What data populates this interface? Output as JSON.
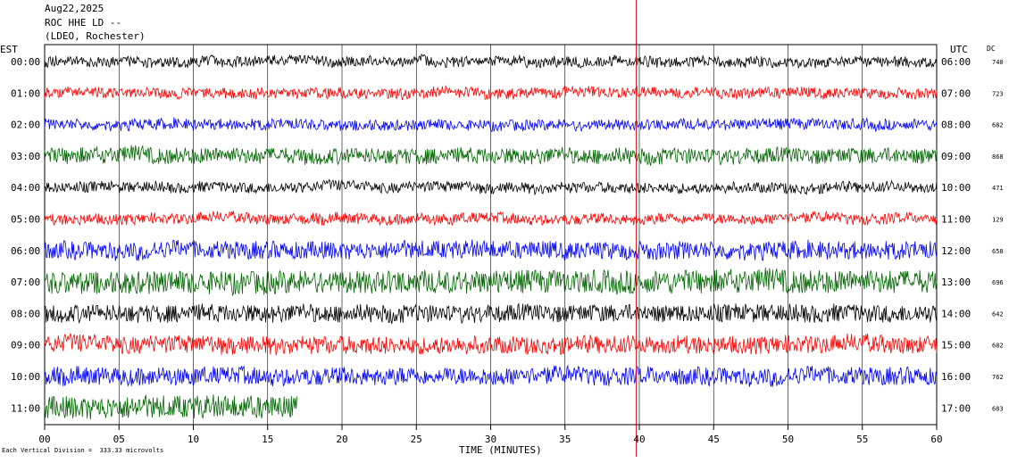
{
  "header": {
    "date": "Aug22,2025",
    "station_line": "ROC HHE LD --",
    "location_line": "(LDEO, Rochester)"
  },
  "axis_labels": {
    "left_timezone": "EST",
    "right_timezone": "UTC",
    "dc_label": "DC",
    "x_title": "TIME (MINUTES)"
  },
  "footer": {
    "note": "Each Vertical Division =  333.33 microvolts"
  },
  "chart_data": {
    "type": "line",
    "title": "",
    "xlabel": "TIME (MINUTES)",
    "x_ticks": [
      "00",
      "05",
      "10",
      "15",
      "20",
      "25",
      "30",
      "35",
      "40",
      "45",
      "50",
      "55",
      "60"
    ],
    "xlim": [
      0,
      60
    ],
    "vertical_division_microvolts": 333.33,
    "trace_colors": [
      "#000000",
      "#ff0000",
      "#0000ff",
      "#006600"
    ],
    "marker_line": {
      "minute": 39.8,
      "color": "#cc0000"
    },
    "rows": [
      {
        "est": "00:00",
        "utc": "06:00",
        "dc": "740",
        "color": "#000000",
        "end_minute": 60
      },
      {
        "est": "01:00",
        "utc": "07:00",
        "dc": "723",
        "color": "#ff0000",
        "end_minute": 60
      },
      {
        "est": "02:00",
        "utc": "08:00",
        "dc": "682",
        "color": "#0000ff",
        "end_minute": 60
      },
      {
        "est": "03:00",
        "utc": "09:00",
        "dc": "868",
        "color": "#006600",
        "end_minute": 60
      },
      {
        "est": "04:00",
        "utc": "10:00",
        "dc": "471",
        "color": "#000000",
        "end_minute": 60
      },
      {
        "est": "05:00",
        "utc": "11:00",
        "dc": "129",
        "color": "#ff0000",
        "end_minute": 60
      },
      {
        "est": "06:00",
        "utc": "12:00",
        "dc": "658",
        "color": "#0000ff",
        "end_minute": 60
      },
      {
        "est": "07:00",
        "utc": "13:00",
        "dc": "696",
        "color": "#006600",
        "end_minute": 60
      },
      {
        "est": "08:00",
        "utc": "14:00",
        "dc": "642",
        "color": "#000000",
        "end_minute": 60
      },
      {
        "est": "09:00",
        "utc": "15:00",
        "dc": "682",
        "color": "#ff0000",
        "end_minute": 60
      },
      {
        "est": "10:00",
        "utc": "16:00",
        "dc": "762",
        "color": "#0000ff",
        "end_minute": 60
      },
      {
        "est": "11:00",
        "utc": "17:00",
        "dc": "683",
        "color": "#006600",
        "end_minute": 17
      }
    ]
  }
}
